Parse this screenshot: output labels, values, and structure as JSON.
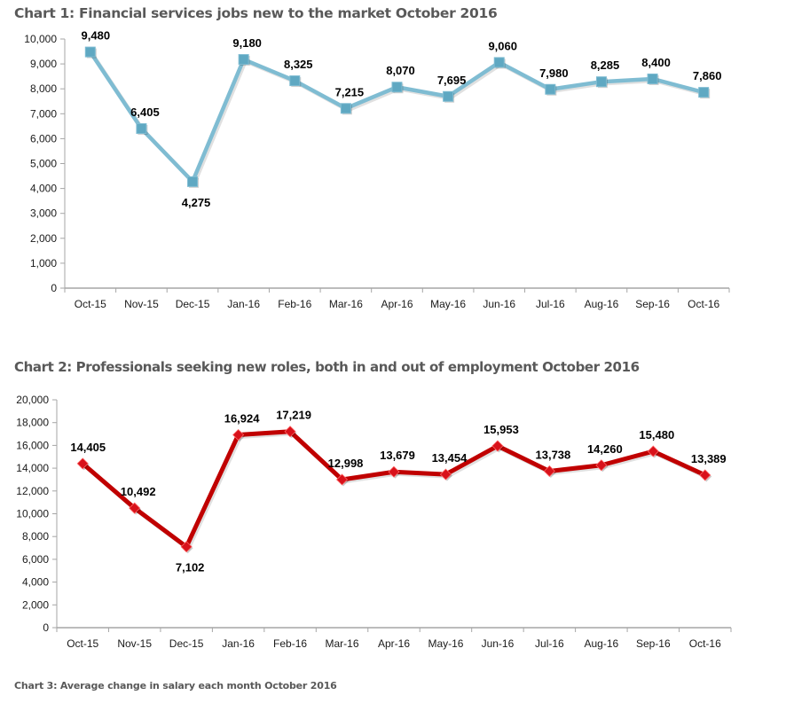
{
  "titles": {
    "chart1": "Chart 1: Financial services jobs new to the market October 2016",
    "chart2": "Chart 2: Professionals seeking new roles, both in and out of employment October 2016",
    "chart3": "Chart 3: Average change in salary each month October 2016"
  },
  "chart_data": [
    {
      "type": "line",
      "title": "Chart 1: Financial services jobs new to the market October 2016",
      "xlabel": "",
      "ylabel": "",
      "categories": [
        "Oct-15",
        "Nov-15",
        "Dec-15",
        "Jan-16",
        "Feb-16",
        "Mar-16",
        "Apr-16",
        "May-16",
        "Jun-16",
        "Jul-16",
        "Aug-16",
        "Sep-16",
        "Oct-16"
      ],
      "series": [
        {
          "name": "Jobs new to the market",
          "values": [
            9480,
            6405,
            4275,
            9180,
            8325,
            7215,
            8070,
            7695,
            9060,
            7980,
            8285,
            8400,
            7860
          ],
          "color": "#7fbcd2",
          "marker": "square"
        }
      ],
      "data_labels": [
        "9,480",
        "6,405",
        "4,275",
        "9,180",
        "8,325",
        "7,215",
        "8,070",
        "7,695",
        "9,060",
        "7,980",
        "8,285",
        "8,400",
        "7,860"
      ],
      "label_positions": [
        "above",
        "above",
        "below",
        "above",
        "above",
        "above",
        "above",
        "above",
        "above",
        "above",
        "above",
        "above",
        "above"
      ],
      "ylim": [
        0,
        10000
      ],
      "yticks": [
        0,
        1000,
        2000,
        3000,
        4000,
        5000,
        6000,
        7000,
        8000,
        9000,
        10000
      ],
      "ytick_labels": [
        "0",
        "1,000",
        "2,000",
        "3,000",
        "4,000",
        "5,000",
        "6,000",
        "7,000",
        "8,000",
        "9,000",
        "10,000"
      ],
      "grid": false,
      "legend": "none"
    },
    {
      "type": "line",
      "title": "Chart 2: Professionals seeking new roles, both in and out of employment October 2016",
      "xlabel": "",
      "ylabel": "",
      "categories": [
        "Oct-15",
        "Nov-15",
        "Dec-15",
        "Jan-16",
        "Feb-16",
        "Mar-16",
        "Apr-16",
        "May-16",
        "Jun-16",
        "Jul-16",
        "Aug-16",
        "Sep-16",
        "Oct-16"
      ],
      "series": [
        {
          "name": "Professionals seeking new roles",
          "values": [
            14405,
            10492,
            7102,
            16924,
            17219,
            12998,
            13679,
            13454,
            15953,
            13738,
            14260,
            15480,
            13389
          ],
          "color": "#c00000",
          "marker": "diamond"
        }
      ],
      "data_labels": [
        "14,405",
        "10,492",
        "7,102",
        "16,924",
        "17,219",
        "12,998",
        "13,679",
        "13,454",
        "15,953",
        "13,738",
        "14,260",
        "15,480",
        "13,389"
      ],
      "label_positions": [
        "above",
        "above",
        "below",
        "above",
        "above",
        "above",
        "above",
        "above",
        "above",
        "above",
        "above",
        "above",
        "above"
      ],
      "ylim": [
        0,
        20000
      ],
      "yticks": [
        0,
        2000,
        4000,
        6000,
        8000,
        10000,
        12000,
        14000,
        16000,
        18000,
        20000
      ],
      "ytick_labels": [
        "0",
        "2,000",
        "4,000",
        "6,000",
        "8,000",
        "10,000",
        "12,000",
        "14,000",
        "16,000",
        "18,000",
        "20,000"
      ],
      "grid": false,
      "legend": "none"
    }
  ]
}
